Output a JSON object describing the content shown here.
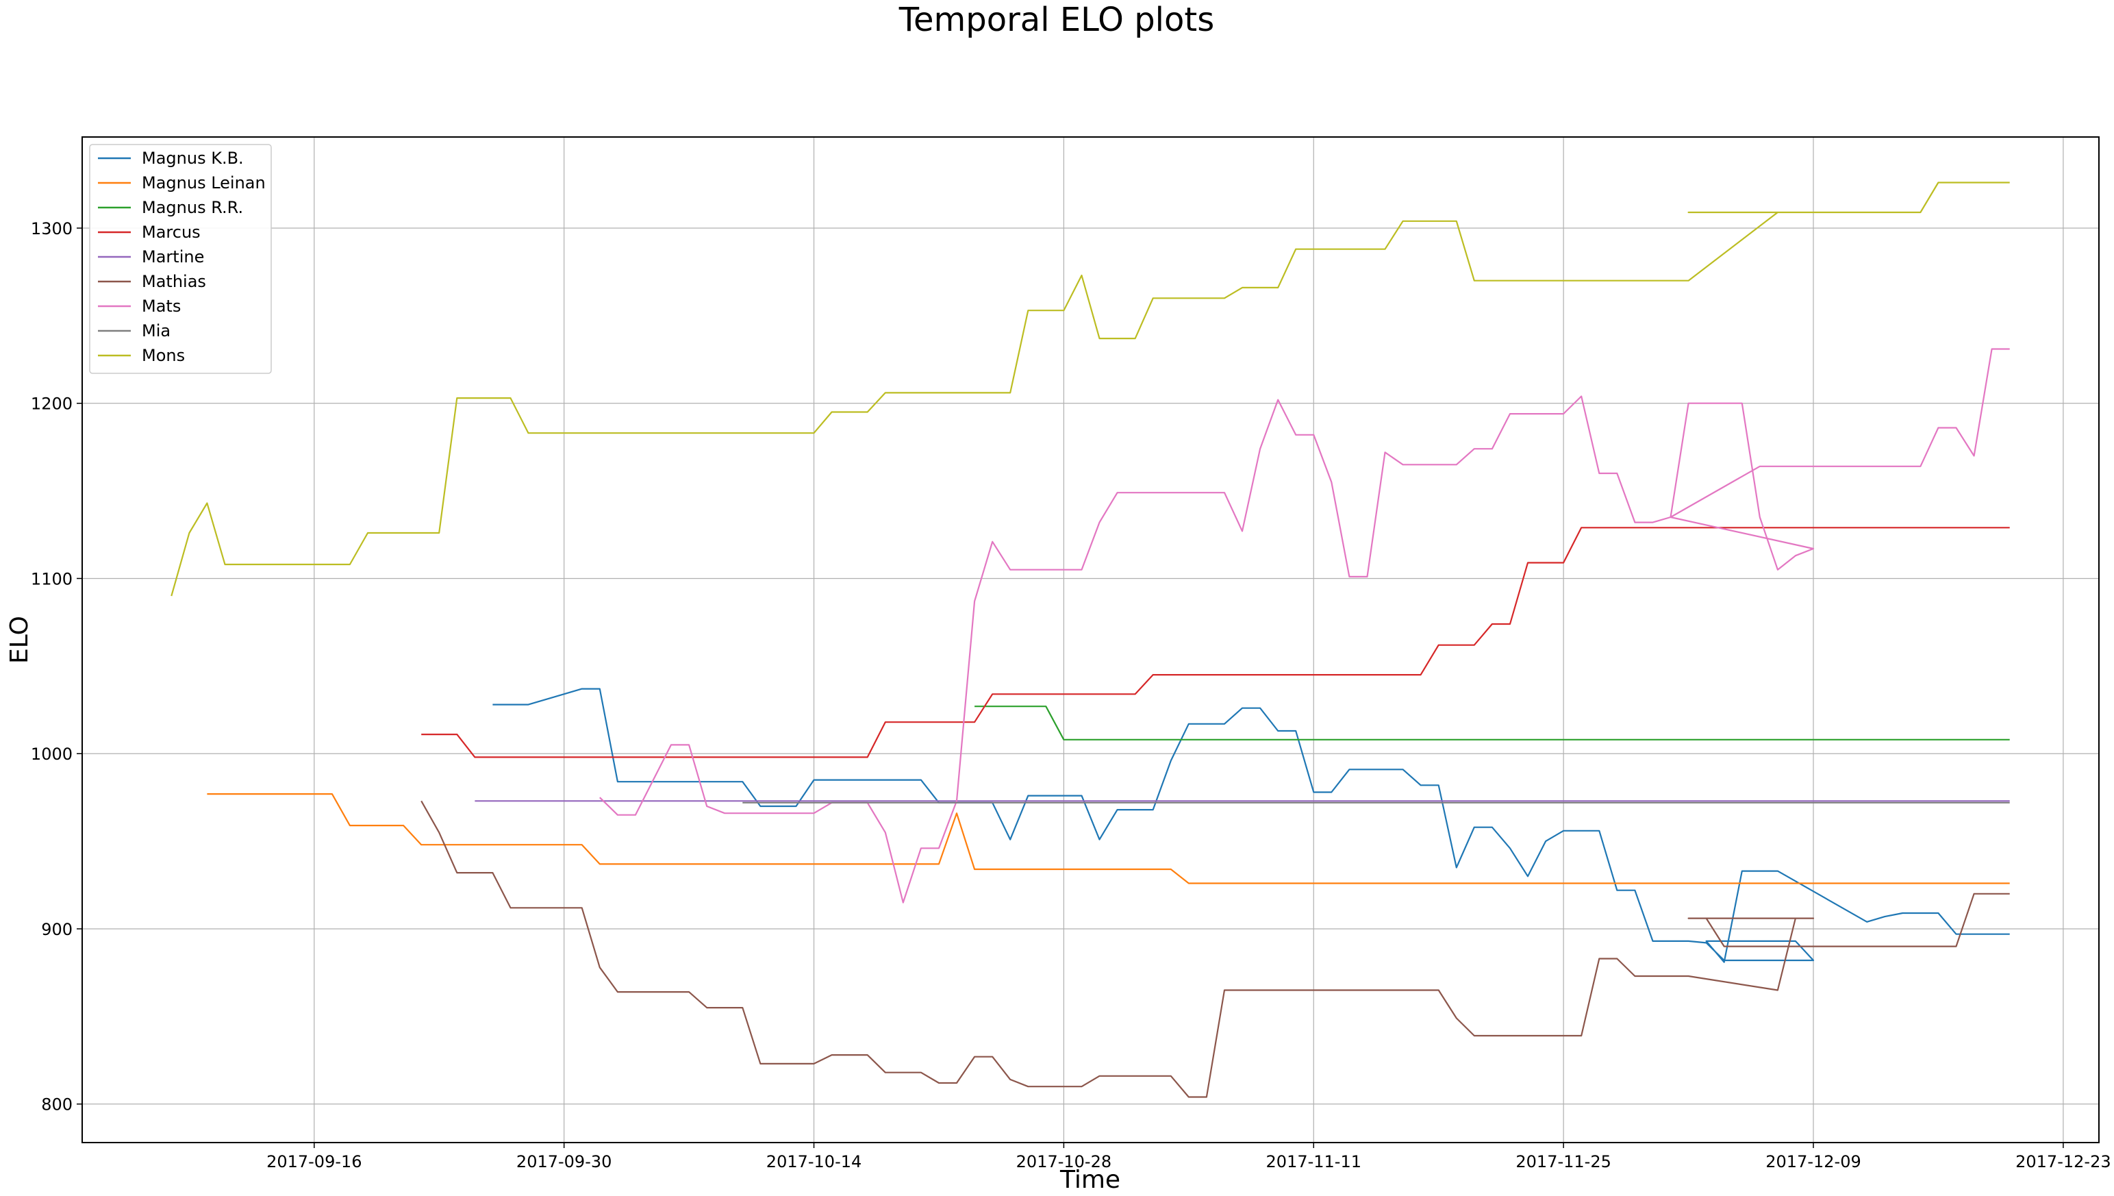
{
  "chart_data": {
    "type": "line",
    "title": "Temporal ELO plots",
    "xlabel": "Time",
    "ylabel": "ELO",
    "x_type": "date",
    "xlim": [
      "2017-09-03",
      "2017-12-25"
    ],
    "ylim": [
      778,
      1352
    ],
    "x_ticks": [
      "2017-09-16",
      "2017-09-30",
      "2017-10-14",
      "2017-10-28",
      "2017-11-11",
      "2017-11-25",
      "2017-12-09",
      "2017-12-23"
    ],
    "y_ticks": [
      800,
      900,
      1000,
      1100,
      1200,
      1300
    ],
    "grid": true,
    "legend_position": "upper-left",
    "series": [
      {
        "name": "Magnus K.B.",
        "color": "#1f77b4",
        "points": [
          [
            "2017-09-26",
            1028
          ],
          [
            "2017-09-28",
            1028
          ],
          [
            "2017-10-01",
            1037
          ],
          [
            "2017-10-02",
            1037
          ],
          [
            "2017-10-03",
            984
          ],
          [
            "2017-10-10",
            984
          ],
          [
            "2017-10-11",
            970
          ],
          [
            "2017-10-13",
            970
          ],
          [
            "2017-10-14",
            985
          ],
          [
            "2017-10-20",
            985
          ],
          [
            "2017-10-21",
            972
          ],
          [
            "2017-10-24",
            972
          ],
          [
            "2017-10-25",
            951
          ],
          [
            "2017-10-26",
            976
          ],
          [
            "2017-10-29",
            976
          ],
          [
            "2017-10-30",
            951
          ],
          [
            "2017-10-31",
            968
          ],
          [
            "2017-11-02",
            968
          ],
          [
            "2017-11-03",
            996
          ],
          [
            "2017-11-04",
            1017
          ],
          [
            "2017-11-06",
            1017
          ],
          [
            "2017-11-07",
            1026
          ],
          [
            "2017-11-08",
            1026
          ],
          [
            "2017-11-09",
            1013
          ],
          [
            "2017-11-10",
            1013
          ],
          [
            "2017-11-11",
            978
          ],
          [
            "2017-11-12",
            978
          ],
          [
            "2017-11-13",
            991
          ],
          [
            "2017-11-16",
            991
          ],
          [
            "2017-11-17",
            982
          ],
          [
            "2017-11-18",
            982
          ],
          [
            "2017-11-19",
            935
          ],
          [
            "2017-11-20",
            958
          ],
          [
            "2017-11-21",
            958
          ],
          [
            "2017-11-22",
            946
          ],
          [
            "2017-11-23",
            930
          ],
          [
            "2017-11-24",
            950
          ],
          [
            "2017-11-25",
            956
          ],
          [
            "2017-11-27",
            956
          ],
          [
            "2017-11-28",
            922
          ],
          [
            "2017-11-29",
            922
          ],
          [
            "2017-11-30",
            893
          ],
          [
            "2017-12-02",
            893
          ],
          [
            "2017-12-03",
            892
          ],
          [
            "2017-12-04",
            882
          ],
          [
            "2017-12-08",
            882
          ],
          [
            "2017-12-09",
            882
          ],
          [
            "2017-12-08",
            893
          ],
          [
            "2017-12-03",
            893
          ],
          [
            "2017-12-04",
            881
          ],
          [
            "2017-12-05",
            933
          ],
          [
            "2017-12-07",
            933
          ],
          [
            "2017-12-12",
            904
          ],
          [
            "2017-12-13",
            907
          ],
          [
            "2017-12-14",
            909
          ],
          [
            "2017-12-16",
            909
          ],
          [
            "2017-12-17",
            897
          ],
          [
            "2017-12-20",
            897
          ]
        ]
      },
      {
        "name": "Magnus Leinan",
        "color": "#ff7f0e",
        "points": [
          [
            "2017-09-10",
            977
          ],
          [
            "2017-09-17",
            977
          ],
          [
            "2017-09-18",
            959
          ],
          [
            "2017-09-21",
            959
          ],
          [
            "2017-09-22",
            948
          ],
          [
            "2017-10-01",
            948
          ],
          [
            "2017-10-02",
            937
          ],
          [
            "2017-10-21",
            937
          ],
          [
            "2017-10-22",
            966
          ],
          [
            "2017-10-23",
            934
          ],
          [
            "2017-11-03",
            934
          ],
          [
            "2017-11-04",
            926
          ],
          [
            "2017-12-20",
            926
          ]
        ]
      },
      {
        "name": "Magnus R.R.",
        "color": "#2ca02c",
        "points": [
          [
            "2017-10-23",
            1027
          ],
          [
            "2017-10-27",
            1027
          ],
          [
            "2017-10-28",
            1008
          ],
          [
            "2017-12-20",
            1008
          ]
        ]
      },
      {
        "name": "Marcus",
        "color": "#d62728",
        "points": [
          [
            "2017-09-22",
            1011
          ],
          [
            "2017-09-24",
            1011
          ],
          [
            "2017-09-25",
            998
          ],
          [
            "2017-10-17",
            998
          ],
          [
            "2017-10-18",
            1018
          ],
          [
            "2017-10-23",
            1018
          ],
          [
            "2017-10-24",
            1034
          ],
          [
            "2017-11-01",
            1034
          ],
          [
            "2017-11-02",
            1045
          ],
          [
            "2017-11-17",
            1045
          ],
          [
            "2017-11-18",
            1062
          ],
          [
            "2017-11-20",
            1062
          ],
          [
            "2017-11-21",
            1074
          ],
          [
            "2017-11-22",
            1074
          ],
          [
            "2017-11-23",
            1109
          ],
          [
            "2017-11-25",
            1109
          ],
          [
            "2017-11-26",
            1129
          ],
          [
            "2017-12-20",
            1129
          ]
        ]
      },
      {
        "name": "Martine",
        "color": "#9467bd",
        "points": [
          [
            "2017-09-25",
            973
          ],
          [
            "2017-12-20",
            973
          ]
        ]
      },
      {
        "name": "Mathias",
        "color": "#8c564b",
        "points": [
          [
            "2017-09-22",
            973
          ],
          [
            "2017-09-23",
            955
          ],
          [
            "2017-09-24",
            932
          ],
          [
            "2017-09-26",
            932
          ],
          [
            "2017-09-27",
            912
          ],
          [
            "2017-09-30",
            912
          ],
          [
            "2017-10-01",
            912
          ],
          [
            "2017-10-02",
            878
          ],
          [
            "2017-10-03",
            864
          ],
          [
            "2017-10-07",
            864
          ],
          [
            "2017-10-08",
            855
          ],
          [
            "2017-10-10",
            855
          ],
          [
            "2017-10-11",
            823
          ],
          [
            "2017-10-14",
            823
          ],
          [
            "2017-10-15",
            828
          ],
          [
            "2017-10-17",
            828
          ],
          [
            "2017-10-18",
            818
          ],
          [
            "2017-10-20",
            818
          ],
          [
            "2017-10-21",
            812
          ],
          [
            "2017-10-22",
            812
          ],
          [
            "2017-10-23",
            827
          ],
          [
            "2017-10-24",
            827
          ],
          [
            "2017-10-25",
            814
          ],
          [
            "2017-10-26",
            810
          ],
          [
            "2017-10-29",
            810
          ],
          [
            "2017-10-30",
            816
          ],
          [
            "2017-11-03",
            816
          ],
          [
            "2017-11-04",
            804
          ],
          [
            "2017-11-05",
            804
          ],
          [
            "2017-11-06",
            865
          ],
          [
            "2017-11-18",
            865
          ],
          [
            "2017-11-19",
            849
          ],
          [
            "2017-11-20",
            839
          ],
          [
            "2017-11-25",
            839
          ],
          [
            "2017-11-26",
            839
          ],
          [
            "2017-11-27",
            883
          ],
          [
            "2017-11-28",
            883
          ],
          [
            "2017-11-29",
            873
          ],
          [
            "2017-12-02",
            873
          ],
          [
            "2017-12-07",
            865
          ],
          [
            "2017-12-08",
            906
          ],
          [
            "2017-12-09",
            906
          ],
          [
            "2017-12-02",
            906
          ],
          [
            "2017-12-03",
            906
          ],
          [
            "2017-12-04",
            890
          ],
          [
            "2017-12-17",
            890
          ],
          [
            "2017-12-18",
            920
          ],
          [
            "2017-12-20",
            920
          ]
        ]
      },
      {
        "name": "Mats",
        "color": "#e377c2",
        "points": [
          [
            "2017-10-02",
            975
          ],
          [
            "2017-10-03",
            965
          ],
          [
            "2017-10-04",
            965
          ],
          [
            "2017-10-06",
            1005
          ],
          [
            "2017-10-07",
            1005
          ],
          [
            "2017-10-08",
            970
          ],
          [
            "2017-10-09",
            966
          ],
          [
            "2017-10-14",
            966
          ],
          [
            "2017-10-15",
            972
          ],
          [
            "2017-10-17",
            972
          ],
          [
            "2017-10-18",
            955
          ],
          [
            "2017-10-19",
            915
          ],
          [
            "2017-10-20",
            946
          ],
          [
            "2017-10-21",
            946
          ],
          [
            "2017-10-22",
            973
          ],
          [
            "2017-10-23",
            1087
          ],
          [
            "2017-10-24",
            1121
          ],
          [
            "2017-10-25",
            1105
          ],
          [
            "2017-10-29",
            1105
          ],
          [
            "2017-10-30",
            1132
          ],
          [
            "2017-10-31",
            1149
          ],
          [
            "2017-11-06",
            1149
          ],
          [
            "2017-11-07",
            1127
          ],
          [
            "2017-11-08",
            1174
          ],
          [
            "2017-11-09",
            1202
          ],
          [
            "2017-11-10",
            1182
          ],
          [
            "2017-11-11",
            1182
          ],
          [
            "2017-11-12",
            1155
          ],
          [
            "2017-11-13",
            1101
          ],
          [
            "2017-11-14",
            1101
          ],
          [
            "2017-11-15",
            1172
          ],
          [
            "2017-11-16",
            1165
          ],
          [
            "2017-11-19",
            1165
          ],
          [
            "2017-11-20",
            1174
          ],
          [
            "2017-11-21",
            1174
          ],
          [
            "2017-11-22",
            1194
          ],
          [
            "2017-11-25",
            1194
          ],
          [
            "2017-11-26",
            1204
          ],
          [
            "2017-11-27",
            1160
          ],
          [
            "2017-11-28",
            1160
          ],
          [
            "2017-11-29",
            1132
          ],
          [
            "2017-11-30",
            1132
          ],
          [
            "2017-12-01",
            1135
          ],
          [
            "2017-12-09",
            1117
          ],
          [
            "2017-12-08",
            1113
          ],
          [
            "2017-12-07",
            1105
          ],
          [
            "2017-12-06",
            1135
          ],
          [
            "2017-12-05",
            1200
          ],
          [
            "2017-12-04",
            1200
          ],
          [
            "2017-12-03",
            1200
          ],
          [
            "2017-12-02",
            1200
          ],
          [
            "2017-12-01",
            1135
          ],
          [
            "2017-12-06",
            1164
          ],
          [
            "2017-12-15",
            1164
          ],
          [
            "2017-12-16",
            1186
          ],
          [
            "2017-12-17",
            1186
          ],
          [
            "2017-12-18",
            1170
          ],
          [
            "2017-12-19",
            1231
          ],
          [
            "2017-12-20",
            1231
          ]
        ]
      },
      {
        "name": "Mia",
        "color": "#7f7f7f",
        "points": [
          [
            "2017-10-10",
            972
          ],
          [
            "2017-12-20",
            972
          ]
        ]
      },
      {
        "name": "Mons",
        "color": "#bcbd22",
        "points": [
          [
            "2017-09-08",
            1090
          ],
          [
            "2017-09-09",
            1126
          ],
          [
            "2017-09-10",
            1143
          ],
          [
            "2017-09-11",
            1108
          ],
          [
            "2017-09-18",
            1108
          ],
          [
            "2017-09-19",
            1126
          ],
          [
            "2017-09-23",
            1126
          ],
          [
            "2017-09-24",
            1203
          ],
          [
            "2017-09-27",
            1203
          ],
          [
            "2017-09-28",
            1183
          ],
          [
            "2017-10-14",
            1183
          ],
          [
            "2017-10-15",
            1195
          ],
          [
            "2017-10-17",
            1195
          ],
          [
            "2017-10-18",
            1206
          ],
          [
            "2017-10-25",
            1206
          ],
          [
            "2017-10-26",
            1253
          ],
          [
            "2017-10-28",
            1253
          ],
          [
            "2017-10-29",
            1273
          ],
          [
            "2017-10-30",
            1237
          ],
          [
            "2017-11-01",
            1237
          ],
          [
            "2017-11-02",
            1260
          ],
          [
            "2017-11-06",
            1260
          ],
          [
            "2017-11-07",
            1266
          ],
          [
            "2017-11-09",
            1266
          ],
          [
            "2017-11-10",
            1288
          ],
          [
            "2017-11-15",
            1288
          ],
          [
            "2017-11-16",
            1304
          ],
          [
            "2017-11-19",
            1304
          ],
          [
            "2017-11-20",
            1270
          ],
          [
            "2017-11-26",
            1270
          ],
          [
            "2017-12-02",
            1270
          ],
          [
            "2017-12-07",
            1309
          ],
          [
            "2017-12-02",
            1309
          ],
          [
            "2017-12-10",
            1309
          ],
          [
            "2017-12-15",
            1309
          ],
          [
            "2017-12-16",
            1326
          ],
          [
            "2017-12-20",
            1326
          ]
        ]
      }
    ]
  }
}
